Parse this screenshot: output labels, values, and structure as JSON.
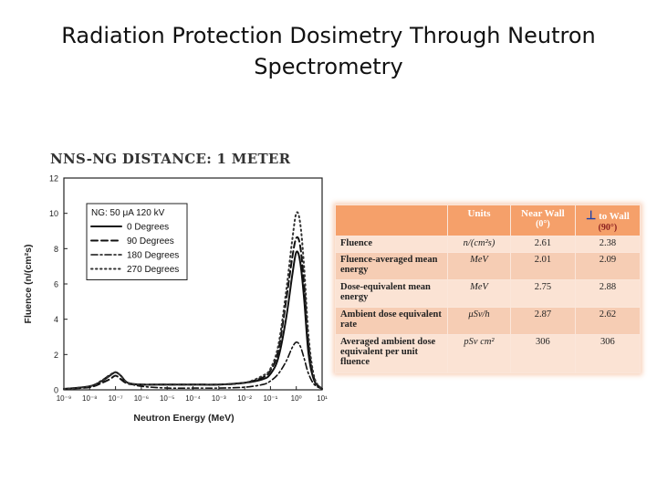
{
  "slide": {
    "title_line1": "Radiation Protection Dosimetry Through Neutron",
    "title_line2": "Spectrometry"
  },
  "chart_data": {
    "type": "line",
    "title": "NNS-NG DISTANCE: 1 METER",
    "xlabel": "Neutron Energy (MeV)",
    "ylabel": "Fluence (n/(cm²s)",
    "x_scale": "log",
    "xlim": [
      1e-09,
      10
    ],
    "ylim": [
      0,
      12
    ],
    "x_ticks": [
      "10⁻⁹",
      "10⁻⁸",
      "10⁻⁷",
      "10⁻⁶",
      "10⁻⁵",
      "10⁻⁴",
      "10⁻³",
      "10⁻²",
      "10⁻¹",
      "10⁰",
      "10¹"
    ],
    "y_ticks": [
      0,
      2,
      4,
      6,
      8,
      10,
      12
    ],
    "legend_header": "NG: 50 μA 120 kV",
    "legend_position": "top-left",
    "x": [
      1e-09,
      1e-08,
      3e-08,
      6e-08,
      1e-07,
      1.6e-07,
      3e-07,
      1e-06,
      1e-05,
      0.0001,
      0.001,
      0.01,
      0.05,
      0.1,
      0.2,
      0.4,
      0.7,
      1.0,
      1.4,
      2.0,
      3.0,
      5.0,
      10.0
    ],
    "series": [
      {
        "name": "0 Degrees",
        "dash": "solid",
        "values": [
          0.05,
          0.2,
          0.5,
          0.8,
          1.0,
          0.8,
          0.4,
          0.3,
          0.3,
          0.3,
          0.3,
          0.4,
          0.6,
          0.9,
          1.8,
          4.0,
          6.5,
          7.8,
          7.3,
          5.2,
          2.0,
          0.5,
          0.05
        ]
      },
      {
        "name": "90 Degrees",
        "dash": "dashed",
        "values": [
          0.05,
          0.15,
          0.4,
          0.6,
          0.8,
          0.6,
          0.35,
          0.3,
          0.3,
          0.3,
          0.3,
          0.4,
          0.7,
          1.1,
          2.2,
          5.0,
          7.5,
          8.6,
          8.2,
          6.0,
          2.5,
          0.6,
          0.05
        ]
      },
      {
        "name": "180 Degrees",
        "dash": "dash-dot",
        "values": [
          0.05,
          0.2,
          0.55,
          0.85,
          1.0,
          0.8,
          0.4,
          0.2,
          0.1,
          0.1,
          0.1,
          0.15,
          0.3,
          0.5,
          0.9,
          1.6,
          2.4,
          2.7,
          2.5,
          1.8,
          0.9,
          0.3,
          0.05
        ]
      },
      {
        "name": "270 Degrees",
        "dash": "dotted",
        "values": [
          0.05,
          0.2,
          0.5,
          0.8,
          1.0,
          0.8,
          0.4,
          0.3,
          0.3,
          0.3,
          0.3,
          0.4,
          0.8,
          1.2,
          2.5,
          5.5,
          8.5,
          10.0,
          9.5,
          7.0,
          3.0,
          0.7,
          0.05
        ]
      }
    ]
  },
  "table": {
    "headers": {
      "quantity": "",
      "units": "Units",
      "near_wall": "Near Wall",
      "near_wall_angle": "(0°)",
      "perp_symbol": "⊥",
      "perp_label": "to Wall",
      "perp_angle": "(90°)"
    },
    "rows": [
      {
        "quantity": "Fluence",
        "unit": "n/(cm²s)",
        "near": "2.61",
        "perp": "2.38"
      },
      {
        "quantity": "Fluence-averaged mean energy",
        "unit": "MeV",
        "near": "2.01",
        "perp": "2.09"
      },
      {
        "quantity": "Dose-equivalent mean energy",
        "unit": "MeV",
        "near": "2.75",
        "perp": "2.88"
      },
      {
        "quantity": "Ambient dose equivalent rate",
        "unit": "μSv/h",
        "near": "2.87",
        "perp": "2.62"
      },
      {
        "quantity": "Averaged ambient dose equivalent per unit fluence",
        "unit": "pSv cm²",
        "near": "306",
        "perp": "306"
      }
    ]
  }
}
